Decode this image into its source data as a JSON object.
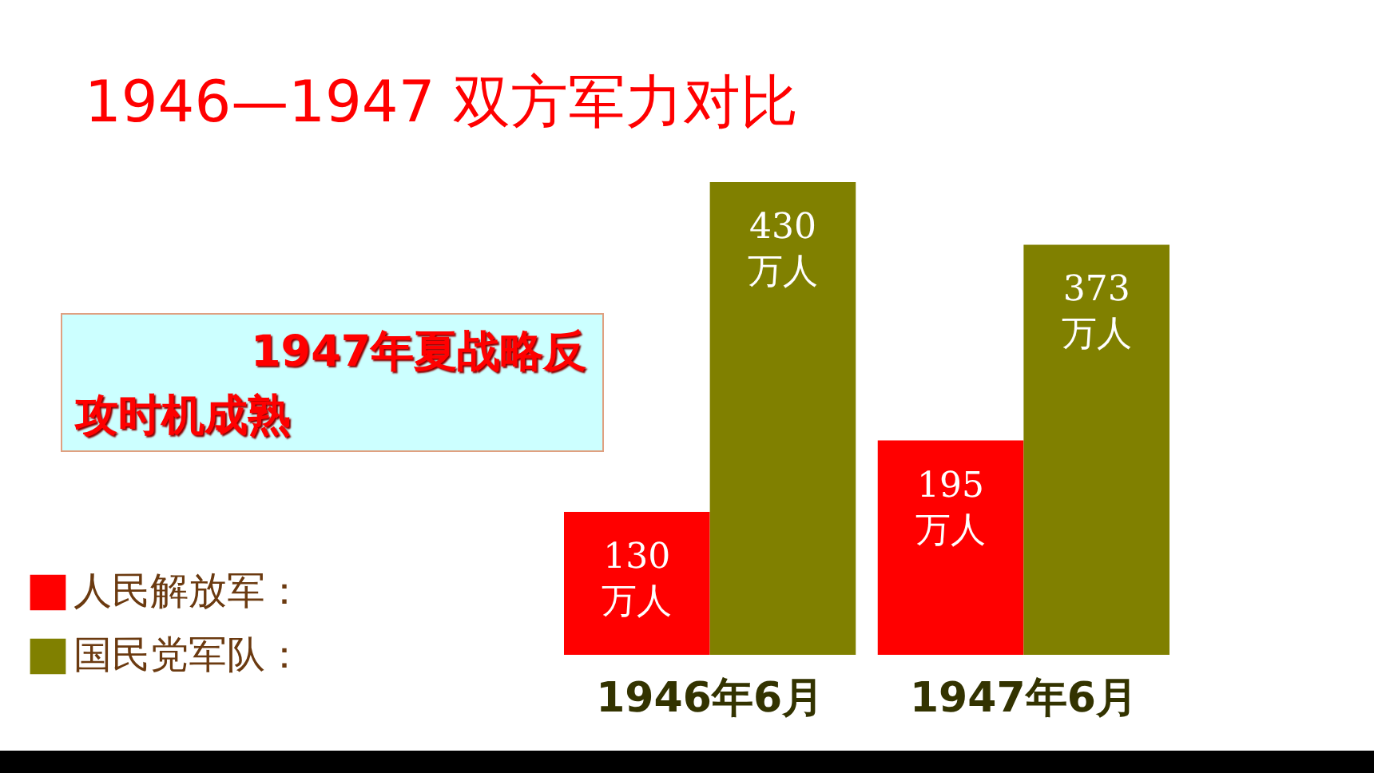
{
  "chart_data": {
    "type": "bar",
    "title": "1946—1947 双方军力对比",
    "categories": [
      "1946年6月",
      "1947年6月"
    ],
    "series": [
      {
        "name": "人民解放军：",
        "color": "#ff0000",
        "values": [
          130,
          195
        ],
        "value_labels": [
          "130\n万人",
          "195\n万人"
        ]
      },
      {
        "name": "国民党军队：",
        "color": "#808000",
        "values": [
          430,
          373
        ],
        "value_labels": [
          "430\n万人",
          "373\n万人"
        ]
      }
    ],
    "annotations": [
      "1947年夏战略反攻时机成熟"
    ],
    "legend": "bottom left"
  }
}
